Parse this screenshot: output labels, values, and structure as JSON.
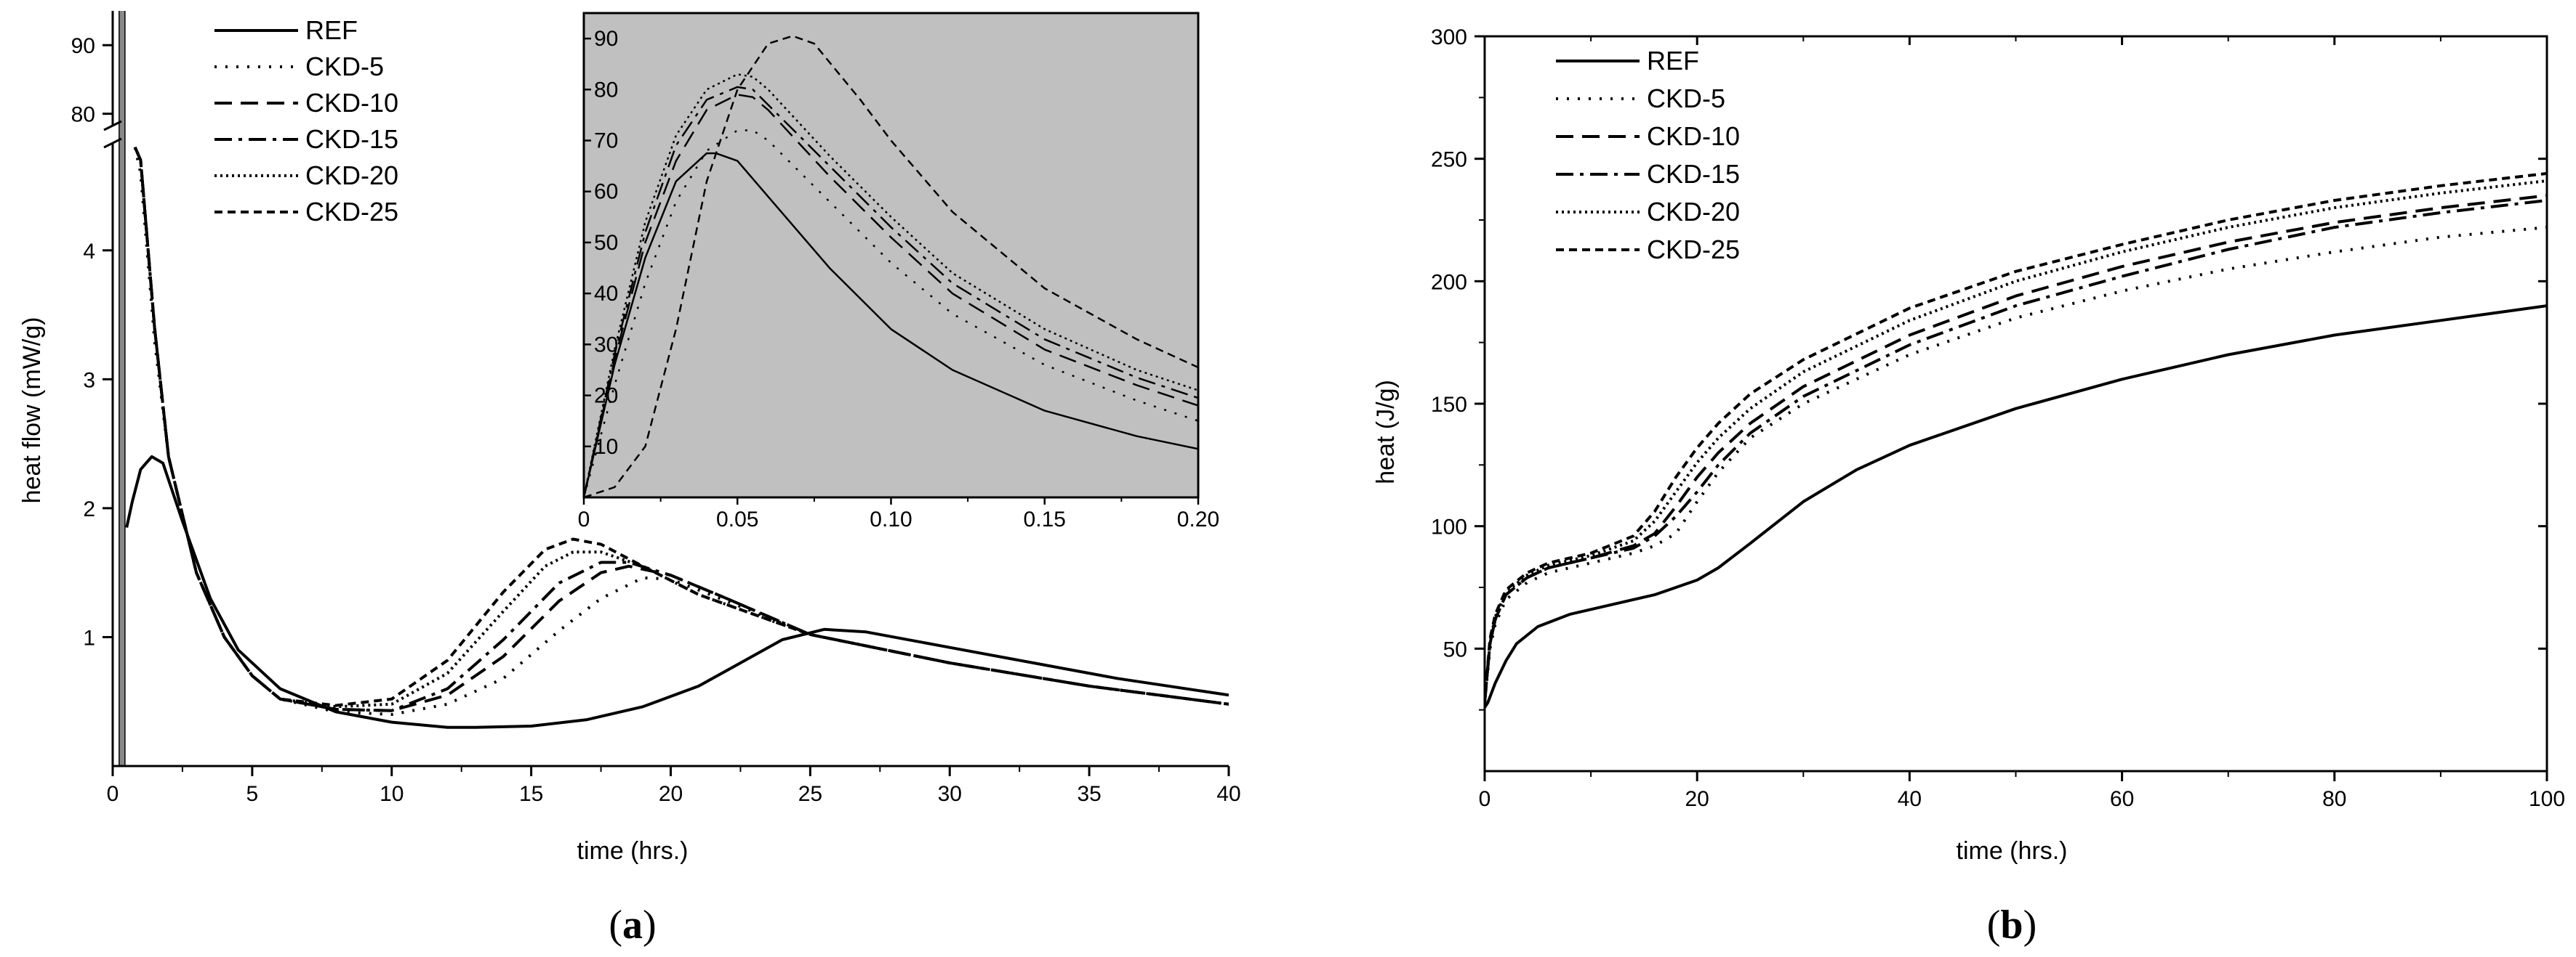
{
  "panels": [
    {
      "id": "a",
      "label_open": "(",
      "label_letter": "a",
      "label_close": ")"
    },
    {
      "id": "b",
      "label_open": "(",
      "label_letter": "b",
      "label_close": ")"
    }
  ],
  "chart_data": [
    {
      "id": "a-main",
      "type": "line",
      "xlabel": "time (hrs.)",
      "ylabel": "heat flow (mW/g)",
      "xlim": [
        0,
        40
      ],
      "xticks": [
        0,
        5,
        10,
        15,
        20,
        25,
        30,
        35,
        40
      ],
      "yticks_lower": [
        1,
        2,
        3,
        4
      ],
      "yticks_upper": [
        80,
        90
      ],
      "y_axis_break": true,
      "legend_position": "top-left",
      "series": [
        {
          "name": "REF",
          "style": "solid",
          "x": [
            0.5,
            0.7,
            1.0,
            1.4,
            1.8,
            2.5,
            3.5,
            4.5,
            6,
            8,
            10,
            12,
            13,
            15,
            17,
            19,
            21,
            22.5,
            24,
            25.5,
            27,
            30,
            33,
            36,
            40
          ],
          "y": [
            1.85,
            2.05,
            2.3,
            2.4,
            2.35,
            1.9,
            1.3,
            0.9,
            0.6,
            0.42,
            0.34,
            0.3,
            0.3,
            0.31,
            0.36,
            0.46,
            0.62,
            0.8,
            0.98,
            1.06,
            1.04,
            0.92,
            0.8,
            0.68,
            0.55
          ]
        },
        {
          "name": "CKD-5",
          "style": "dotted",
          "x": [
            0.8,
            1.0,
            1.5,
            2.0,
            3,
            4,
            5,
            6,
            8,
            10,
            12,
            14,
            16,
            17.5,
            19,
            20,
            22,
            25,
            30,
            35,
            40
          ],
          "y": [
            4.8,
            4.6,
            3.3,
            2.4,
            1.5,
            1.0,
            0.7,
            0.52,
            0.42,
            0.4,
            0.48,
            0.68,
            1.05,
            1.3,
            1.46,
            1.45,
            1.28,
            1.02,
            0.8,
            0.62,
            0.48
          ]
        },
        {
          "name": "CKD-10",
          "style": "dashed",
          "x": [
            0.8,
            1.0,
            1.5,
            2.0,
            3,
            4,
            5,
            6,
            8,
            10,
            12,
            14,
            16,
            17.5,
            18.5,
            20,
            22,
            25,
            30,
            35,
            40
          ],
          "y": [
            4.8,
            4.7,
            3.4,
            2.4,
            1.5,
            1.0,
            0.7,
            0.52,
            0.44,
            0.43,
            0.55,
            0.85,
            1.28,
            1.5,
            1.55,
            1.48,
            1.3,
            1.02,
            0.8,
            0.62,
            0.48
          ]
        },
        {
          "name": "CKD-15",
          "style": "dashdot",
          "x": [
            0.8,
            1.0,
            1.5,
            2.0,
            3,
            4,
            5,
            6,
            8,
            10,
            12,
            14,
            16,
            17.5,
            18.5,
            20,
            22,
            25,
            30,
            35,
            40
          ],
          "y": [
            4.8,
            4.7,
            3.4,
            2.4,
            1.5,
            1.0,
            0.7,
            0.52,
            0.44,
            0.43,
            0.6,
            0.98,
            1.42,
            1.58,
            1.58,
            1.48,
            1.3,
            1.02,
            0.8,
            0.62,
            0.48
          ]
        },
        {
          "name": "CKD-20",
          "style": "fine-dotted",
          "x": [
            0.8,
            1.0,
            1.5,
            2.0,
            3,
            4,
            5,
            6,
            8,
            10,
            12,
            14,
            15.5,
            16.5,
            17.5,
            19,
            21,
            25,
            30,
            35,
            40
          ],
          "y": [
            4.8,
            4.7,
            3.4,
            2.4,
            1.5,
            1.0,
            0.7,
            0.52,
            0.46,
            0.48,
            0.72,
            1.2,
            1.55,
            1.66,
            1.66,
            1.55,
            1.33,
            1.02,
            0.8,
            0.62,
            0.48
          ]
        },
        {
          "name": "CKD-25",
          "style": "short-dashed",
          "x": [
            0.8,
            1.0,
            1.5,
            2.0,
            3,
            4,
            5,
            6,
            8,
            10,
            12,
            14,
            15.5,
            16.5,
            17.5,
            19,
            21,
            25,
            30,
            35,
            40
          ],
          "y": [
            4.8,
            4.7,
            3.4,
            2.4,
            1.5,
            1.0,
            0.7,
            0.52,
            0.47,
            0.52,
            0.82,
            1.35,
            1.68,
            1.76,
            1.72,
            1.55,
            1.33,
            1.02,
            0.8,
            0.62,
            0.48
          ]
        }
      ]
    },
    {
      "id": "a-inset",
      "type": "line",
      "xlim": [
        0,
        0.2
      ],
      "ylim": [
        0,
        95
      ],
      "xticks": [
        0,
        0.05,
        0.1,
        0.15,
        0.2
      ],
      "xtick_labels": [
        "0",
        "0.05",
        "0.10",
        "0.15",
        "0.20"
      ],
      "yticks": [
        10,
        20,
        30,
        40,
        50,
        60,
        70,
        80,
        90
      ],
      "background": "#c0c0c0",
      "series": [
        {
          "name": "REF",
          "style": "solid",
          "x": [
            0,
            0.01,
            0.02,
            0.03,
            0.04,
            0.043,
            0.05,
            0.06,
            0.08,
            0.1,
            0.12,
            0.15,
            0.18,
            0.2
          ],
          "y": [
            0,
            26,
            47,
            62,
            67.5,
            67.5,
            66,
            59,
            45,
            33,
            25,
            17,
            12,
            9.5
          ]
        },
        {
          "name": "CKD-5",
          "style": "dotted",
          "x": [
            0,
            0.01,
            0.02,
            0.03,
            0.04,
            0.05,
            0.055,
            0.06,
            0.08,
            0.1,
            0.12,
            0.15,
            0.18,
            0.2
          ],
          "y": [
            0,
            22,
            42,
            58,
            68,
            72,
            72,
            70,
            58,
            46,
            36,
            26,
            19,
            15
          ]
        },
        {
          "name": "CKD-10",
          "style": "dashed",
          "x": [
            0,
            0.01,
            0.02,
            0.03,
            0.04,
            0.05,
            0.055,
            0.06,
            0.08,
            0.1,
            0.12,
            0.15,
            0.18,
            0.2
          ],
          "y": [
            0,
            27,
            50,
            66,
            76,
            79,
            78.5,
            76,
            63,
            51,
            40,
            29,
            22,
            18
          ]
        },
        {
          "name": "CKD-15",
          "style": "dashdot",
          "x": [
            0,
            0.01,
            0.02,
            0.03,
            0.04,
            0.05,
            0.055,
            0.06,
            0.08,
            0.1,
            0.12,
            0.15,
            0.18,
            0.2
          ],
          "y": [
            0,
            28,
            52,
            69,
            78,
            80.5,
            80,
            77,
            65,
            53,
            42,
            31,
            23.5,
            19.5
          ]
        },
        {
          "name": "CKD-20",
          "style": "fine-dotted",
          "x": [
            0,
            0.01,
            0.02,
            0.03,
            0.04,
            0.05,
            0.055,
            0.06,
            0.08,
            0.1,
            0.12,
            0.15,
            0.18,
            0.2
          ],
          "y": [
            0,
            29,
            54,
            71,
            80,
            83,
            82.5,
            80,
            67,
            55,
            44,
            33,
            25,
            21
          ]
        },
        {
          "name": "CKD-25",
          "style": "short-dashed",
          "x": [
            0,
            0.01,
            0.02,
            0.03,
            0.04,
            0.05,
            0.06,
            0.068,
            0.075,
            0.09,
            0.1,
            0.12,
            0.15,
            0.18,
            0.2
          ],
          "y": [
            0,
            2,
            10,
            33,
            62,
            80,
            89,
            90.5,
            89,
            78,
            70,
            56,
            41,
            31,
            25.5
          ]
        }
      ]
    },
    {
      "id": "b",
      "type": "line",
      "xlabel": "time (hrs.)",
      "ylabel": "heat (J/g)",
      "xlim": [
        0,
        100
      ],
      "ylim": [
        0,
        300
      ],
      "xticks": [
        0,
        20,
        40,
        60,
        80,
        100
      ],
      "yticks": [
        50,
        100,
        150,
        200,
        250,
        300
      ],
      "legend_position": "top-left",
      "series": [
        {
          "name": "REF",
          "style": "solid",
          "x": [
            0,
            0.3,
            1,
            2,
            3,
            5,
            8,
            12,
            16,
            20,
            22,
            25,
            30,
            35,
            40,
            50,
            60,
            70,
            80,
            90,
            100
          ],
          "y": [
            26,
            28,
            36,
            45,
            52,
            59,
            64,
            68,
            72,
            78,
            83,
            93,
            110,
            123,
            133,
            148,
            160,
            170,
            178,
            184,
            190
          ]
        },
        {
          "name": "CKD-5",
          "style": "dotted",
          "x": [
            0,
            0.5,
            1,
            2,
            4,
            6,
            10,
            14,
            16,
            18,
            20,
            22,
            25,
            30,
            40,
            50,
            60,
            70,
            80,
            90,
            100
          ],
          "y": [
            28,
            50,
            60,
            70,
            77,
            81,
            85,
            89,
            92,
            97,
            110,
            122,
            136,
            150,
            170,
            185,
            196,
            205,
            212,
            218,
            222
          ]
        },
        {
          "name": "CKD-10",
          "style": "dashed",
          "x": [
            0,
            0.5,
            1,
            2,
            4,
            6,
            10,
            14,
            16,
            18,
            20,
            22,
            25,
            30,
            40,
            50,
            60,
            70,
            80,
            90,
            100
          ],
          "y": [
            28,
            52,
            62,
            72,
            79,
            83,
            87,
            92,
            97,
            108,
            120,
            130,
            142,
            157,
            178,
            194,
            206,
            216,
            224,
            230,
            235
          ]
        },
        {
          "name": "CKD-15",
          "style": "dashdot",
          "x": [
            0,
            0.5,
            1,
            2,
            4,
            6,
            10,
            14,
            16,
            18,
            20,
            22,
            25,
            30,
            40,
            50,
            60,
            70,
            80,
            90,
            100
          ],
          "y": [
            28,
            52,
            62,
            72,
            79,
            83,
            87,
            91,
            96,
            104,
            114,
            125,
            138,
            153,
            174,
            190,
            202,
            213,
            222,
            228,
            233
          ]
        },
        {
          "name": "CKD-20",
          "style": "fine-dotted",
          "x": [
            0,
            0.5,
            1,
            2,
            4,
            6,
            10,
            14,
            16,
            18,
            20,
            22,
            25,
            30,
            40,
            50,
            60,
            70,
            80,
            90,
            100
          ],
          "y": [
            28,
            53,
            63,
            73,
            80,
            84,
            88,
            94,
            102,
            114,
            126,
            136,
            148,
            163,
            184,
            200,
            212,
            222,
            230,
            236,
            241
          ]
        },
        {
          "name": "CKD-25",
          "style": "short-dashed",
          "x": [
            0,
            0.5,
            1,
            2,
            4,
            6,
            10,
            14,
            16,
            18,
            20,
            22,
            25,
            30,
            40,
            50,
            60,
            70,
            80,
            90,
            100
          ],
          "y": [
            28,
            54,
            64,
            74,
            81,
            85,
            89,
            96,
            106,
            120,
            132,
            142,
            154,
            168,
            189,
            204,
            215,
            225,
            233,
            239,
            244
          ]
        }
      ]
    }
  ]
}
